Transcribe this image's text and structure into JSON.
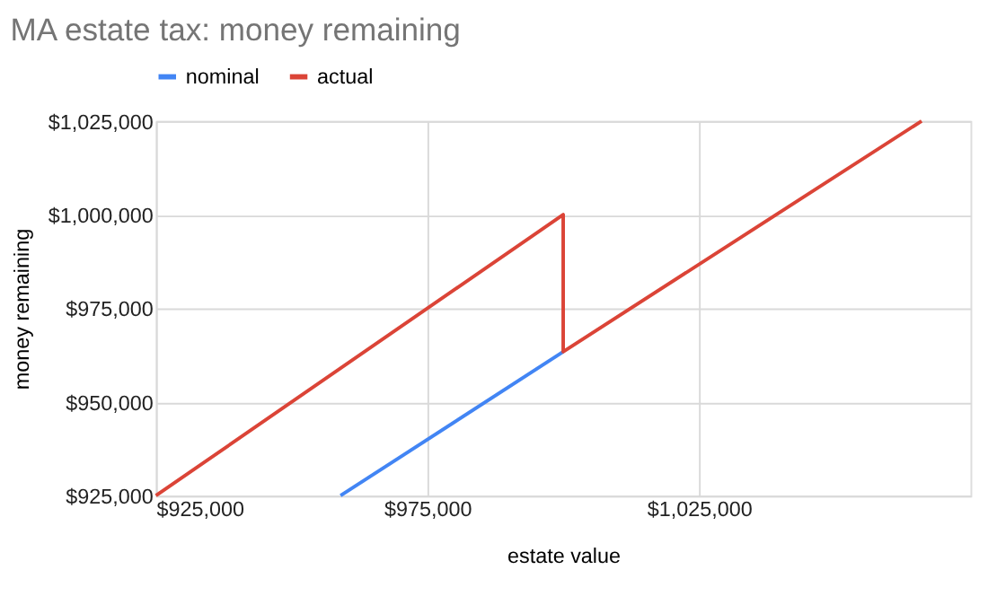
{
  "chart_data": {
    "type": "line",
    "title": "MA estate tax: money remaining",
    "xlabel": "estate value",
    "ylabel": "money remaining",
    "series": [
      {
        "name": "nominal",
        "color": "#4285f4",
        "x": [
          959000,
          1000000
        ],
        "values": [
          925000,
          963400
        ]
      },
      {
        "name": "actual",
        "color": "#db4437",
        "x": [
          925000,
          1000000,
          1000000,
          1066000
        ],
        "values": [
          925000,
          1000000,
          963400,
          1025000
        ]
      }
    ],
    "xlim": [
      925000,
      1075000
    ],
    "xticks": [
      {
        "value": 925000,
        "label": "$925,000"
      },
      {
        "value": 975000,
        "label": "$975,000"
      },
      {
        "value": 1025000,
        "label": "$1,025,000"
      }
    ],
    "ylim": [
      925000,
      1025000
    ],
    "yticks": [
      {
        "value": 925000,
        "label": "$925,000"
      },
      {
        "value": 950000,
        "label": "$950,000"
      },
      {
        "value": 975000,
        "label": "$975,000"
      },
      {
        "value": 1000000,
        "label": "$1,000,000"
      },
      {
        "value": 1025000,
        "label": "$1,025,000"
      }
    ],
    "grid": true,
    "legend": "top",
    "marker": "none",
    "line_style": "solid"
  }
}
